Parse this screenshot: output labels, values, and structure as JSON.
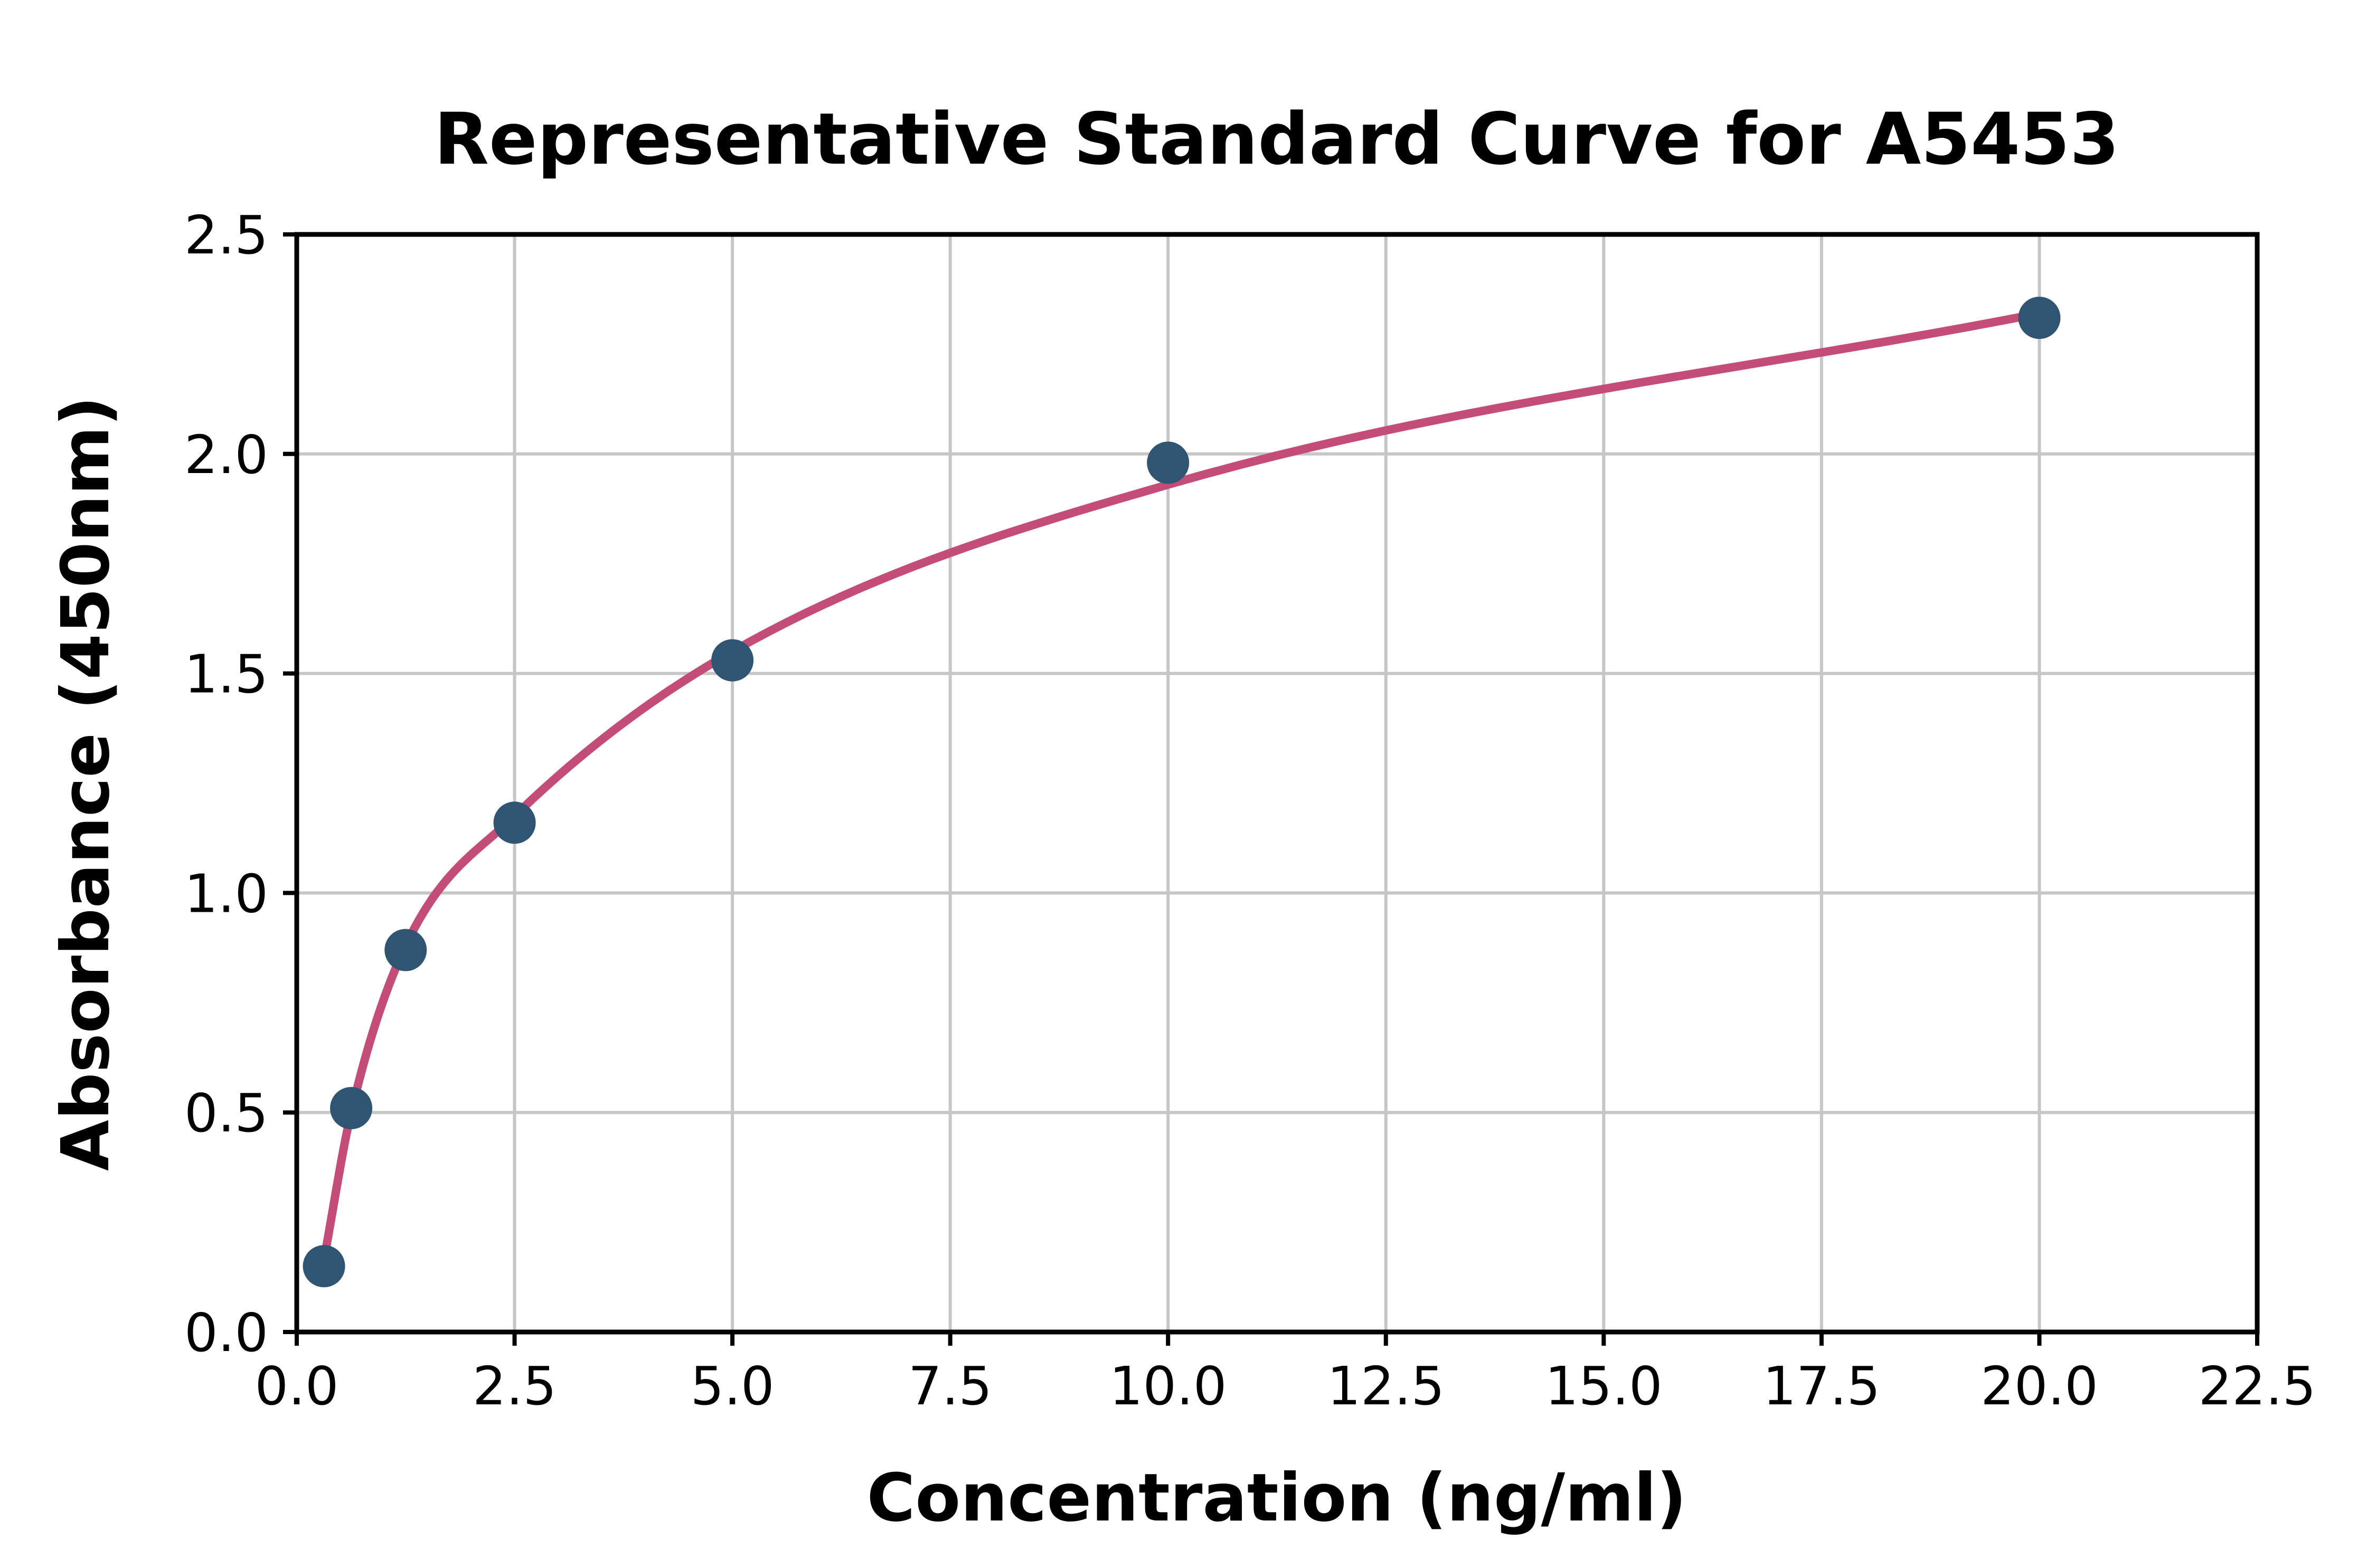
{
  "page": {
    "background": "#FFFFFF"
  },
  "chart_data": {
    "type": "scatter",
    "title": "Representative Standard Curve for A5453",
    "xlabel": "Concentration (ng/ml)",
    "ylabel": "Absorbance (450nm)",
    "xlim": [
      0,
      22.5
    ],
    "ylim": [
      0,
      2.5
    ],
    "x_tick_labels": [
      "0.0",
      "2.5",
      "5.0",
      "7.5",
      "10.0",
      "12.5",
      "15.0",
      "17.5",
      "20.0",
      "22.5"
    ],
    "y_tick_labels": [
      "0.0",
      "0.5",
      "1.0",
      "1.5",
      "2.0",
      "2.5"
    ],
    "grid": true,
    "legend": "none",
    "series": [
      {
        "name": "standard-points",
        "type": "scatter",
        "x": [
          0.3125,
          0.625,
          1.25,
          2.5,
          5,
          10,
          20
        ],
        "y": [
          0.15,
          0.51,
          0.87,
          1.16,
          1.53,
          1.98,
          2.31
        ],
        "color": "#2F5573",
        "marker_radius": 40
      },
      {
        "name": "fit-curve",
        "type": "line",
        "x": [
          0.3125,
          0.625,
          1.25,
          2.5,
          5,
          10,
          20
        ],
        "y": [
          0.165,
          0.5,
          0.88,
          1.175,
          1.55,
          1.93,
          2.32
        ],
        "color": "#C44D77",
        "stroke_width": 16
      }
    ],
    "grid_color": "#C6C6C6",
    "axis_color": "#000000",
    "background_color": "#FFFFFF"
  }
}
